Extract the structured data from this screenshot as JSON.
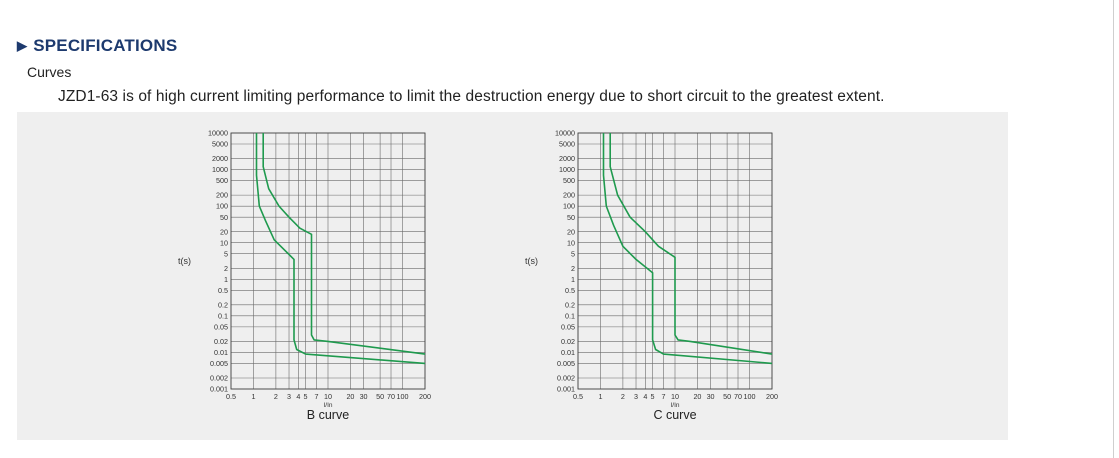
{
  "heading": {
    "arrow": "▶",
    "title": "SPECIFICATIONS"
  },
  "subheading": "Curves",
  "description": "JZD1-63 is of high current limiting performance to limit the destruction energy due to short circuit to the greatest extent.",
  "colors": {
    "curve": "#1f9a4e",
    "grid": "#6a6a6a",
    "heading": "#1d3a6e",
    "panel": "#efefef"
  },
  "chart_data": [
    {
      "type": "line",
      "caption": "B curve",
      "xlabel": "I/In",
      "ylabel": "t(s)",
      "xscale": "log",
      "yscale": "log",
      "xlim": [
        0.5,
        200
      ],
      "ylim": [
        0.001,
        10000
      ],
      "xticks": [
        "0.5",
        "1",
        "2",
        "3",
        "4",
        "5",
        "7",
        "10",
        "20",
        "30",
        "50",
        "70",
        "100",
        "200"
      ],
      "yticks": [
        "10000",
        "5000",
        "2000",
        "1000",
        "500",
        "200",
        "100",
        "50",
        "20",
        "10",
        "5",
        "2",
        "1",
        "0.5",
        "0.2",
        "0.1",
        "0.05",
        "0.02",
        "0.01",
        "0.005",
        "0.002",
        "0.001"
      ],
      "grid": true,
      "series": [
        {
          "points": [
            [
              1.1,
              10000
            ],
            [
              1.1,
              700
            ],
            [
              1.2,
              100
            ],
            [
              1.45,
              40
            ],
            [
              1.9,
              12
            ],
            [
              3.5,
              3.5
            ],
            [
              3.5,
              0.022
            ],
            [
              3.8,
              0.012
            ],
            [
              5,
              0.009
            ],
            [
              200,
              0.005
            ]
          ]
        },
        {
          "points": [
            [
              1.35,
              10000
            ],
            [
              1.35,
              1200
            ],
            [
              1.6,
              300
            ],
            [
              2.2,
              100
            ],
            [
              3,
              50
            ],
            [
              4.2,
              25
            ],
            [
              6,
              17
            ],
            [
              6,
              0.03
            ],
            [
              6.5,
              0.022
            ],
            [
              10,
              0.02
            ],
            [
              200,
              0.009
            ]
          ]
        }
      ]
    },
    {
      "type": "line",
      "caption": "C curve",
      "xlabel": "I/In",
      "ylabel": "t(s)",
      "xscale": "log",
      "yscale": "log",
      "xlim": [
        0.5,
        200
      ],
      "ylim": [
        0.001,
        10000
      ],
      "xticks": [
        "0.5",
        "1",
        "2",
        "3",
        "4",
        "5",
        "7",
        "10",
        "20",
        "30",
        "50",
        "70",
        "100",
        "200"
      ],
      "yticks": [
        "10000",
        "5000",
        "2000",
        "1000",
        "500",
        "200",
        "100",
        "50",
        "20",
        "10",
        "5",
        "2",
        "1",
        "0.5",
        "0.2",
        "0.1",
        "0.05",
        "0.02",
        "0.01",
        "0.005",
        "0.002",
        "0.001"
      ],
      "grid": true,
      "series": [
        {
          "points": [
            [
              1.1,
              10000
            ],
            [
              1.1,
              700
            ],
            [
              1.2,
              100
            ],
            [
              1.5,
              30
            ],
            [
              2,
              8
            ],
            [
              3,
              3.5
            ],
            [
              5,
              1.5
            ],
            [
              5,
              0.022
            ],
            [
              5.5,
              0.012
            ],
            [
              7,
              0.009
            ],
            [
              200,
              0.005
            ]
          ]
        },
        {
          "points": [
            [
              1.35,
              10000
            ],
            [
              1.35,
              1200
            ],
            [
              1.7,
              200
            ],
            [
              2.5,
              50
            ],
            [
              4,
              20
            ],
            [
              6,
              8
            ],
            [
              10,
              4
            ],
            [
              10,
              0.03
            ],
            [
              11,
              0.022
            ],
            [
              16,
              0.02
            ],
            [
              200,
              0.009
            ]
          ]
        }
      ]
    }
  ]
}
